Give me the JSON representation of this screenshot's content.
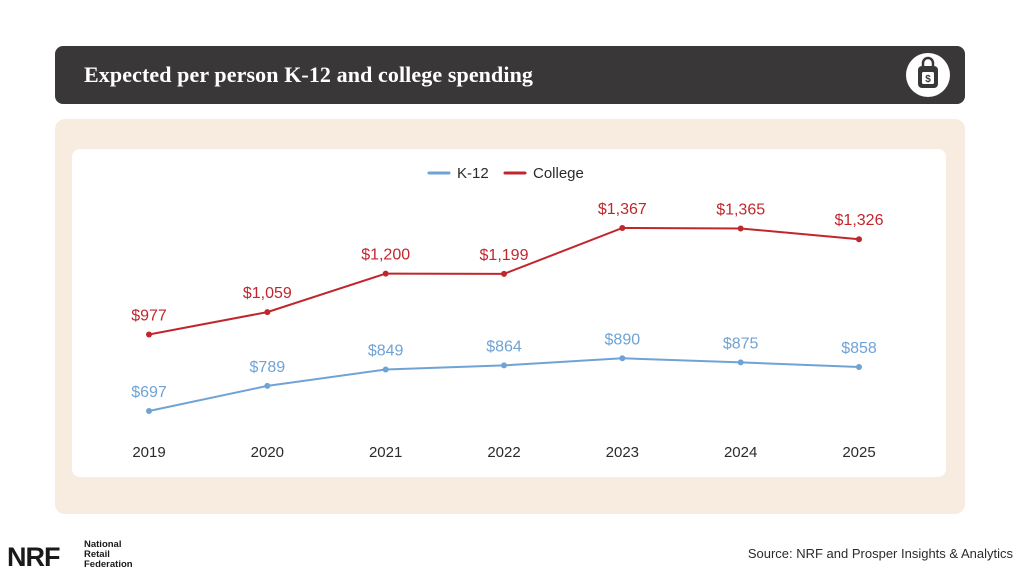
{
  "header": {
    "title": "Expected per person K-12 and college spending",
    "icon": "backpack-dollar-icon"
  },
  "footer": {
    "logo_mark": "NRF",
    "logo_lines": [
      "National",
      "Retail",
      "Federation"
    ],
    "source": "Source: NRF and Prosper Insights & Analytics"
  },
  "chart_data": {
    "type": "line",
    "title": "Expected per person K-12 and college spending",
    "x": [
      "2019",
      "2020",
      "2021",
      "2022",
      "2023",
      "2024",
      "2025"
    ],
    "series": [
      {
        "name": "K-12",
        "color": "#6fa3d6",
        "values": [
          697,
          789,
          849,
          864,
          890,
          875,
          858
        ],
        "labels": [
          "$697",
          "$789",
          "$849",
          "$864",
          "$890",
          "$875",
          "$858"
        ]
      },
      {
        "name": "College",
        "color": "#c0272d",
        "values": [
          977,
          1059,
          1200,
          1199,
          1367,
          1365,
          1326
        ],
        "labels": [
          "$977",
          "$1,059",
          "$1,200",
          "$1,199",
          "$1,367",
          "$1,365",
          "$1,326"
        ]
      }
    ],
    "legend": "top-center",
    "grid": false,
    "y_axis_visible": false,
    "ylim": [
      600,
      1450
    ]
  }
}
